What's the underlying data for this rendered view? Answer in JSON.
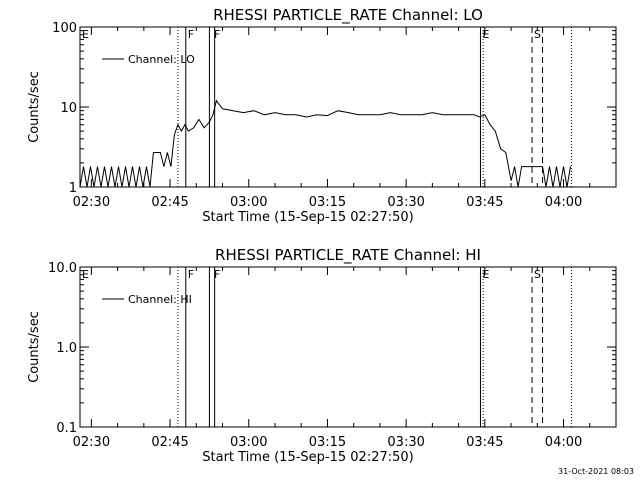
{
  "chart_data": [
    {
      "type": "line",
      "title": "RHESSI PARTICLE_RATE Channel: LO",
      "xlabel": "Start Time (15-Sep-15 02:27:50)",
      "ylabel": "Counts/sec",
      "yscale": "log",
      "ylim": [
        1,
        100
      ],
      "xlim": [
        "02:27:50",
        "04:10:00"
      ],
      "xticks": [
        "02:30",
        "02:45",
        "03:00",
        "03:15",
        "03:30",
        "03:45",
        "04:00"
      ],
      "yticks": [
        "1",
        "10",
        "100"
      ],
      "legend": {
        "label": "Channel: LO",
        "placement": "top-left"
      },
      "markers": [
        {
          "label": "E",
          "time": "02:27:50",
          "style": "dotted"
        },
        {
          "label": "F",
          "time": "02:48:00",
          "style": "solid"
        },
        {
          "label": "F",
          "time": "02:53:00",
          "style": "solid"
        },
        {
          "label": "E",
          "time": "03:44:10",
          "style": "solid"
        },
        {
          "label": "S",
          "time": "03:54:00",
          "style": "dashed"
        }
      ],
      "extra_lines": [
        {
          "time": "02:46:30",
          "style": "dotted"
        },
        {
          "time": "02:48:00",
          "style": "solid"
        },
        {
          "time": "02:52:30",
          "style": "solid"
        },
        {
          "time": "02:53:30",
          "style": "solid"
        },
        {
          "time": "03:44:10",
          "style": "solid"
        },
        {
          "time": "03:44:40",
          "style": "dotted"
        },
        {
          "time": "03:54:00",
          "style": "dashed"
        },
        {
          "time": "03:56:00",
          "style": "dashed"
        },
        {
          "time": "04:01:30",
          "style": "dotted"
        }
      ],
      "series": [
        {
          "x": [
            "02:27:50",
            "02:28:30",
            "02:29:10",
            "02:29:50",
            "02:30:30",
            "02:31:10",
            "02:31:50",
            "02:32:30",
            "02:33:10",
            "02:33:50",
            "02:34:30",
            "02:35:10",
            "02:35:50",
            "02:36:30",
            "02:37:10",
            "02:37:50",
            "02:38:30",
            "02:39:10",
            "02:39:50",
            "02:40:30",
            "02:41:10",
            "02:41:50",
            "02:42:30",
            "02:43:10",
            "02:43:50",
            "02:44:30",
            "02:45:10",
            "02:45:50",
            "02:46:30",
            "02:47:10",
            "02:47:50",
            "02:48:30",
            "02:49:30",
            "02:50:30",
            "02:51:30",
            "02:52:30",
            "02:53:10",
            "02:53:50",
            "02:55:00",
            "02:57:00",
            "02:59:00",
            "03:01:00",
            "03:03:00",
            "03:05:00",
            "03:07:00",
            "03:09:00",
            "03:11:00",
            "03:13:00",
            "03:15:00",
            "03:17:00",
            "03:19:00",
            "03:21:00",
            "03:23:00",
            "03:25:00",
            "03:27:00",
            "03:29:00",
            "03:31:00",
            "03:33:00",
            "03:35:00",
            "03:37:00",
            "03:39:00",
            "03:41:00",
            "03:43:00",
            "03:44:00",
            "03:45:00",
            "03:46:00",
            "03:47:00",
            "03:48:00",
            "03:49:00",
            "03:50:00",
            "03:50:40",
            "03:51:20",
            "03:52:00",
            "03:53:00",
            "03:54:00",
            "03:55:00",
            "03:56:00",
            "03:56:40",
            "03:57:20",
            "03:58:00",
            "03:58:40",
            "03:59:20",
            "04:00:00",
            "04:00:40",
            "04:01:20"
          ],
          "values": [
            1,
            1.8,
            1,
            1.8,
            1,
            1.8,
            1,
            1.8,
            1,
            1.8,
            1,
            1.8,
            1,
            1.8,
            1,
            1.8,
            1,
            1.8,
            1,
            1.8,
            1,
            2.7,
            2.7,
            2.7,
            1.8,
            2.7,
            1.8,
            4.5,
            6,
            5,
            6,
            5,
            5.5,
            7,
            5.5,
            6.5,
            8,
            12,
            9.5,
            9,
            8.5,
            9,
            8,
            8.5,
            8,
            8,
            7.5,
            8,
            7.8,
            9,
            8.5,
            8,
            8,
            8,
            8.5,
            8,
            8,
            8,
            8.5,
            8,
            8,
            8,
            8,
            7.5,
            8,
            6,
            5,
            3,
            2.7,
            1.2,
            1.8,
            1,
            1.8,
            1.8,
            1.8,
            1.8,
            1.8,
            1,
            1.8,
            1,
            1.8,
            1,
            1.8,
            1,
            1.8
          ]
        }
      ]
    },
    {
      "type": "line",
      "title": "RHESSI PARTICLE_RATE Channel: HI",
      "xlabel": "Start Time (15-Sep-15 02:27:50)",
      "ylabel": "Counts/sec",
      "yscale": "log",
      "ylim": [
        0.1,
        10
      ],
      "xlim": [
        "02:27:50",
        "04:10:00"
      ],
      "xticks": [
        "02:30",
        "02:45",
        "03:00",
        "03:15",
        "03:30",
        "03:45",
        "04:00"
      ],
      "yticks": [
        "0.1",
        "1.0",
        "10.0"
      ],
      "legend": {
        "label": "Channel: HI",
        "placement": "top-left"
      },
      "markers": [
        {
          "label": "E",
          "time": "02:27:50",
          "style": "dotted"
        },
        {
          "label": "F",
          "time": "02:48:00",
          "style": "solid"
        },
        {
          "label": "F",
          "time": "02:53:00",
          "style": "solid"
        },
        {
          "label": "E",
          "time": "03:44:10",
          "style": "solid"
        },
        {
          "label": "S",
          "time": "03:54:00",
          "style": "dashed"
        }
      ],
      "extra_lines": [
        {
          "time": "02:46:30",
          "style": "dotted"
        },
        {
          "time": "02:48:00",
          "style": "solid"
        },
        {
          "time": "02:52:30",
          "style": "solid"
        },
        {
          "time": "02:53:30",
          "style": "solid"
        },
        {
          "time": "03:44:10",
          "style": "solid"
        },
        {
          "time": "03:44:40",
          "style": "dotted"
        },
        {
          "time": "03:54:00",
          "style": "dashed"
        },
        {
          "time": "03:56:00",
          "style": "dashed"
        },
        {
          "time": "04:01:30",
          "style": "dotted"
        }
      ],
      "series": []
    }
  ],
  "timestamp": "31-Oct-2021 08:03"
}
